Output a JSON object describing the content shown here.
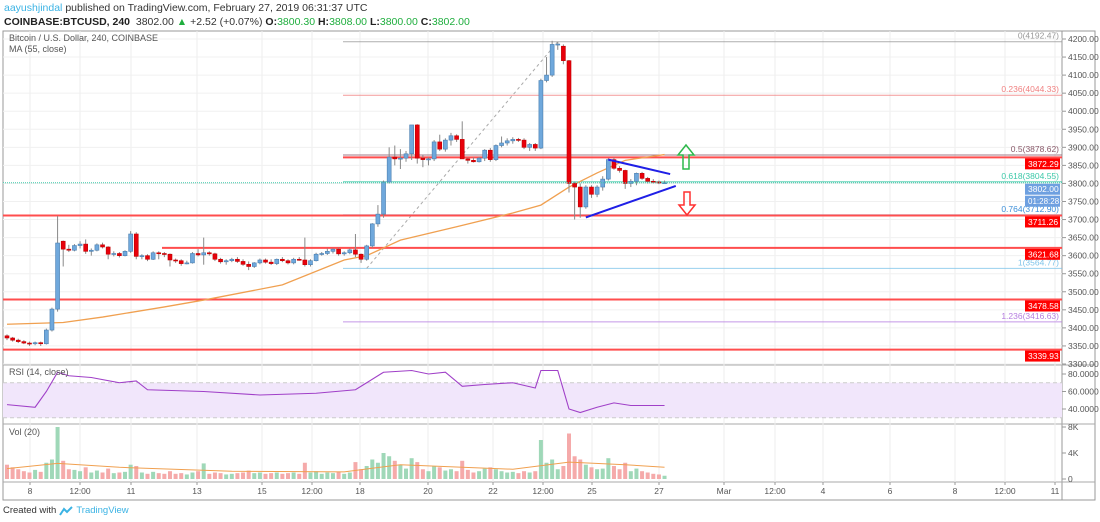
{
  "header": {
    "user": "aayushjindal",
    "published": "published on TradingView.com, February 27, 2019 06:31:37 UTC",
    "symbol": "COINBASE:BTCUSD, 240",
    "last": "3802.00",
    "change": "+2.52 (+0.07%)",
    "o_label": "O:",
    "o": "3800.30",
    "h_label": "H:",
    "h": "3808.00",
    "l_label": "L:",
    "l": "3800.00",
    "c_label": "C:",
    "c": "3802.00"
  },
  "legend": {
    "title": "Bitcoin / U.S. Dollar, 240, COINBASE",
    "ma": "MA (55, close)",
    "rsi": "RSI (14, close)",
    "vol": "Vol (20)"
  },
  "footer": {
    "created": "Created with",
    "brand": "TradingView"
  },
  "colors": {
    "up": "#6fa8dc",
    "down": "#e8000b",
    "ma": "#f0a050",
    "level": "#ff4d4d",
    "triangle": "#1f1fe6",
    "rsi": "#a040c8",
    "vol_up": "#9fd8b8",
    "vol_down": "#f5aaaa"
  },
  "chart_data": {
    "type": "candlestick",
    "price_axis": {
      "range": [
        3290,
        4215
      ],
      "ticks": [
        "4200.00",
        "4150.00",
        "4100.00",
        "4050.00",
        "4000.00",
        "3950.00",
        "3900.00",
        "3850.00",
        "3800.00",
        "3750.00",
        "3700.00",
        "3650.00",
        "3600.00",
        "3550.00",
        "3500.00",
        "3450.00",
        "3400.00",
        "3350.00",
        "3300.00"
      ]
    },
    "time_axis": {
      "ticks": [
        "8",
        "12:00",
        "11",
        "13",
        "15",
        "12:00",
        "18",
        "20",
        "22",
        "12:00",
        "25",
        "27",
        "Mar",
        "12:00",
        "4",
        "6",
        "8",
        "12:00",
        "11"
      ]
    },
    "last_price_label": "3802.00",
    "countdown": "01:28:28",
    "ohlc": [
      [
        3378,
        3382,
        3366,
        3372
      ],
      [
        3372,
        3375,
        3362,
        3366
      ],
      [
        3366,
        3370,
        3358,
        3362
      ],
      [
        3362,
        3366,
        3355,
        3358
      ],
      [
        3358,
        3362,
        3350,
        3356
      ],
      [
        3356,
        3362,
        3352,
        3359
      ],
      [
        3359,
        3362,
        3350,
        3356
      ],
      [
        3356,
        3398,
        3354,
        3394
      ],
      [
        3394,
        3456,
        3390,
        3452
      ],
      [
        3452,
        3710,
        3445,
        3635
      ],
      [
        3640,
        3642,
        3570,
        3618
      ],
      [
        3618,
        3630,
        3610,
        3615
      ],
      [
        3615,
        3632,
        3612,
        3628
      ],
      [
        3628,
        3640,
        3620,
        3632
      ],
      [
        3632,
        3645,
        3605,
        3612
      ],
      [
        3612,
        3620,
        3600,
        3615
      ],
      [
        3615,
        3634,
        3612,
        3630
      ],
      [
        3630,
        3636,
        3620,
        3624
      ],
      [
        3624,
        3626,
        3590,
        3604
      ],
      [
        3604,
        3612,
        3598,
        3606
      ],
      [
        3606,
        3610,
        3595,
        3600
      ],
      [
        3600,
        3615,
        3598,
        3612
      ],
      [
        3612,
        3668,
        3608,
        3660
      ],
      [
        3660,
        3665,
        3590,
        3598
      ],
      [
        3598,
        3604,
        3590,
        3600
      ],
      [
        3600,
        3604,
        3585,
        3590
      ],
      [
        3590,
        3612,
        3588,
        3608
      ],
      [
        3608,
        3612,
        3590,
        3606
      ],
      [
        3606,
        3610,
        3596,
        3604
      ],
      [
        3604,
        3606,
        3570,
        3588
      ],
      [
        3588,
        3592,
        3580,
        3586
      ],
      [
        3586,
        3590,
        3572,
        3578
      ],
      [
        3578,
        3586,
        3576,
        3580
      ],
      [
        3580,
        3610,
        3578,
        3606
      ],
      [
        3606,
        3618,
        3598,
        3602
      ],
      [
        3602,
        3650,
        3575,
        3608
      ],
      [
        3608,
        3612,
        3600,
        3605
      ],
      [
        3605,
        3608,
        3585,
        3590
      ],
      [
        3590,
        3594,
        3578,
        3583
      ],
      [
        3583,
        3590,
        3575,
        3586
      ],
      [
        3586,
        3594,
        3582,
        3590
      ],
      [
        3590,
        3596,
        3580,
        3584
      ],
      [
        3584,
        3590,
        3572,
        3576
      ],
      [
        3576,
        3584,
        3560,
        3570
      ],
      [
        3570,
        3582,
        3566,
        3580
      ],
      [
        3580,
        3592,
        3576,
        3588
      ],
      [
        3588,
        3592,
        3578,
        3582
      ],
      [
        3582,
        3590,
        3574,
        3578
      ],
      [
        3578,
        3592,
        3574,
        3590
      ],
      [
        3590,
        3596,
        3582,
        3586
      ],
      [
        3586,
        3590,
        3576,
        3580
      ],
      [
        3580,
        3594,
        3576,
        3590
      ],
      [
        3590,
        3596,
        3586,
        3588
      ],
      [
        3588,
        3650,
        3570,
        3575
      ],
      [
        3575,
        3590,
        3570,
        3586
      ],
      [
        3586,
        3608,
        3584,
        3604
      ],
      [
        3604,
        3610,
        3600,
        3606
      ],
      [
        3606,
        3620,
        3602,
        3612
      ],
      [
        3612,
        3620,
        3606,
        3618
      ],
      [
        3618,
        3622,
        3600,
        3605
      ],
      [
        3605,
        3612,
        3600,
        3608
      ],
      [
        3608,
        3620,
        3604,
        3616
      ],
      [
        3616,
        3660,
        3596,
        3604
      ],
      [
        3604,
        3606,
        3580,
        3590
      ],
      [
        3590,
        3630,
        3586,
        3627
      ],
      [
        3627,
        3690,
        3622,
        3688
      ],
      [
        3688,
        3740,
        3680,
        3715
      ],
      [
        3715,
        3808,
        3705,
        3804
      ],
      [
        3804,
        3900,
        3800,
        3873
      ],
      [
        3873,
        3905,
        3850,
        3868
      ],
      [
        3868,
        3895,
        3840,
        3870
      ],
      [
        3870,
        3890,
        3860,
        3882
      ],
      [
        3882,
        3960,
        3865,
        3962
      ],
      [
        3962,
        3964,
        3855,
        3870
      ],
      [
        3870,
        3878,
        3845,
        3866
      ],
      [
        3866,
        3872,
        3850,
        3868
      ],
      [
        3868,
        3920,
        3862,
        3915
      ],
      [
        3915,
        3935,
        3890,
        3895
      ],
      [
        3895,
        3925,
        3888,
        3920
      ],
      [
        3920,
        3940,
        3905,
        3932
      ],
      [
        3932,
        3936,
        3915,
        3922
      ],
      [
        3922,
        3972,
        3875,
        3868
      ],
      [
        3868,
        3872,
        3855,
        3864
      ],
      [
        3864,
        3872,
        3858,
        3860
      ],
      [
        3860,
        3874,
        3858,
        3870
      ],
      [
        3870,
        3895,
        3862,
        3892
      ],
      [
        3892,
        3898,
        3860,
        3866
      ],
      [
        3866,
        3908,
        3862,
        3905
      ],
      [
        3905,
        3930,
        3900,
        3912
      ],
      [
        3912,
        3925,
        3905,
        3918
      ],
      [
        3918,
        3928,
        3910,
        3922
      ],
      [
        3922,
        3926,
        3915,
        3920
      ],
      [
        3920,
        3925,
        3895,
        3900
      ],
      [
        3900,
        3912,
        3890,
        3908
      ],
      [
        3908,
        3912,
        3890,
        3898
      ],
      [
        3898,
        4090,
        3895,
        4085
      ],
      [
        4085,
        4150,
        4080,
        4100
      ],
      [
        4100,
        4195,
        4095,
        4185
      ],
      [
        4185,
        4192,
        4170,
        4186
      ],
      [
        4180,
        4185,
        4130,
        4140
      ],
      [
        4140,
        4142,
        3775,
        3800
      ],
      [
        3800,
        3805,
        3700,
        3790
      ],
      [
        3790,
        3800,
        3705,
        3735
      ],
      [
        3735,
        3795,
        3730,
        3790
      ],
      [
        3790,
        3795,
        3760,
        3770
      ],
      [
        3770,
        3795,
        3762,
        3790
      ],
      [
        3790,
        3820,
        3780,
        3812
      ],
      [
        3812,
        3870,
        3808,
        3866
      ],
      [
        3866,
        3872,
        3838,
        3842
      ],
      [
        3842,
        3848,
        3830,
        3836
      ],
      [
        3836,
        3838,
        3785,
        3800
      ],
      [
        3800,
        3812,
        3790,
        3806
      ],
      [
        3806,
        3830,
        3795,
        3828
      ],
      [
        3828,
        3832,
        3810,
        3814
      ],
      [
        3814,
        3818,
        3800,
        3806
      ],
      [
        3806,
        3812,
        3800,
        3804
      ],
      [
        3804,
        3808,
        3798,
        3802
      ],
      [
        3802,
        3808,
        3800,
        3802
      ]
    ],
    "ma55": [
      [
        0,
        3410
      ],
      [
        10,
        3415
      ],
      [
        17,
        3430
      ],
      [
        28,
        3458
      ],
      [
        35,
        3477
      ],
      [
        49,
        3519
      ],
      [
        60,
        3588
      ],
      [
        64,
        3600
      ],
      [
        70,
        3643
      ],
      [
        80,
        3680
      ],
      [
        90,
        3718
      ],
      [
        95,
        3740
      ],
      [
        100,
        3790
      ],
      [
        105,
        3829
      ],
      [
        110,
        3864
      ],
      [
        117,
        3880
      ]
    ],
    "rsi": {
      "ticks": [
        "80.0000",
        "60.0000",
        "40.0000"
      ],
      "band": [
        30,
        70
      ],
      "points": [
        [
          0,
          45
        ],
        [
          5,
          42
        ],
        [
          7,
          60
        ],
        [
          9,
          82
        ],
        [
          11,
          78
        ],
        [
          15,
          76
        ],
        [
          20,
          70
        ],
        [
          23,
          72
        ],
        [
          25,
          62
        ],
        [
          35,
          60
        ],
        [
          45,
          56
        ],
        [
          55,
          58
        ],
        [
          62,
          62
        ],
        [
          64,
          70
        ],
        [
          67,
          82
        ],
        [
          72,
          84
        ],
        [
          75,
          80
        ],
        [
          78,
          82
        ],
        [
          81,
          66
        ],
        [
          85,
          68
        ],
        [
          90,
          70
        ],
        [
          94,
          64
        ],
        [
          95,
          84
        ],
        [
          98,
          84
        ],
        [
          100,
          40
        ],
        [
          102,
          36
        ],
        [
          105,
          42
        ],
        [
          108,
          47
        ],
        [
          111,
          44
        ],
        [
          117,
          44
        ]
      ]
    },
    "volume": {
      "ticks": [
        "8K",
        "4K",
        "0"
      ],
      "values": [
        2.2,
        1.8,
        1.5,
        1.2,
        1.0,
        1.4,
        1.1,
        2.5,
        3.0,
        8.0,
        2.8,
        1.5,
        1.4,
        1.2,
        1.8,
        1.0,
        1.3,
        1.0,
        1.6,
        0.9,
        1.0,
        1.1,
        2.2,
        2.0,
        1.0,
        0.8,
        1.1,
        0.9,
        0.8,
        1.2,
        0.8,
        0.9,
        0.7,
        1.0,
        1.2,
        2.4,
        0.8,
        1.0,
        0.9,
        0.7,
        0.8,
        0.9,
        1.0,
        1.3,
        0.9,
        1.0,
        0.8,
        0.9,
        1.0,
        0.8,
        0.9,
        1.0,
        0.8,
        2.5,
        1.0,
        1.2,
        0.8,
        1.0,
        0.9,
        1.1,
        0.8,
        1.0,
        2.6,
        1.5,
        2.0,
        3.0,
        2.5,
        4.0,
        3.5,
        2.8,
        2.2,
        1.6,
        3.2,
        2.6,
        1.5,
        1.2,
        2.0,
        1.8,
        1.3,
        1.5,
        1.2,
        2.8,
        1.4,
        1.0,
        1.2,
        1.6,
        1.8,
        1.5,
        1.2,
        1.0,
        1.1,
        0.9,
        1.2,
        1.0,
        1.2,
        6.0,
        2.5,
        3.0,
        1.5,
        2.0,
        7.0,
        3.5,
        3.0,
        2.2,
        1.8,
        1.5,
        1.6,
        3.2,
        2.0,
        1.5,
        2.5,
        1.2,
        1.6,
        1.2,
        1.0,
        0.8,
        0.7,
        0.5
      ],
      "ma20": [
        [
          0,
          1.6
        ],
        [
          9,
          2.4
        ],
        [
          20,
          1.8
        ],
        [
          40,
          1.2
        ],
        [
          60,
          1.1
        ],
        [
          70,
          2.2
        ],
        [
          90,
          1.5
        ],
        [
          100,
          2.6
        ],
        [
          110,
          2.2
        ],
        [
          117,
          1.8
        ]
      ]
    },
    "horizontal_levels": [
      {
        "label": "3872.29",
        "value": 3872.29
      },
      {
        "label": "3711.26",
        "value": 3711.26
      },
      {
        "label": "3621.68",
        "value": 3621.68
      },
      {
        "label": "3478.58",
        "value": 3478.58
      },
      {
        "label": "3339.93",
        "value": 3339.93
      }
    ],
    "fibonacci": [
      {
        "label": "0(4192.47)",
        "value": 4192.47,
        "color": "#999999"
      },
      {
        "label": "0.236(4044.33)",
        "value": 4044.33,
        "color": "#f08080"
      },
      {
        "label": "0.5(3878.62)",
        "value": 3878.62,
        "color": "#8a5a6a"
      },
      {
        "label": "0.618(3804.55)",
        "value": 3804.55,
        "color": "#3cc8a8"
      },
      {
        "label": "0.764(3712.90)",
        "value": 3712.9,
        "color": "#3d8fd9"
      },
      {
        "label": "1(3564.77)",
        "value": 3564.77,
        "color": "#7fc4ea"
      },
      {
        "label": "1.236(3416.63)",
        "value": 3416.63,
        "color": "#b67ee0"
      }
    ],
    "triangle": {
      "upper": [
        [
          107,
          3866
        ],
        [
          118,
          3826
        ]
      ],
      "lower": [
        [
          103,
          3706
        ],
        [
          119,
          3793
        ]
      ]
    },
    "fib_anchor": [
      [
        64,
        3564.77
      ],
      [
        98,
        4192.47
      ]
    ]
  }
}
